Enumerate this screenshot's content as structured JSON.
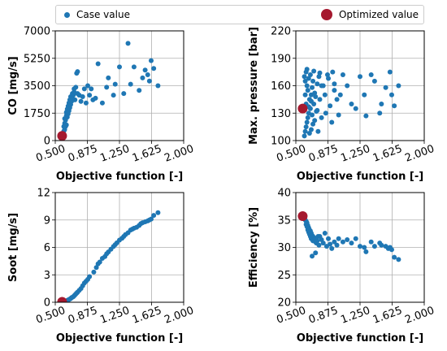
{
  "legend": {
    "case_label": "Case value",
    "optimized_label": "Optimized value",
    "case_color": "#1f77b4",
    "optimized_color": "#a5192f"
  },
  "chart_data": [
    {
      "type": "scatter",
      "id": "co",
      "xlabel": "Objective function [-]",
      "ylabel": "CO [mg/s]",
      "xlim": [
        0.5,
        2.0
      ],
      "ylim": [
        0,
        7000
      ],
      "xticks": [
        "0.500",
        "0.875",
        "1.250",
        "1.625",
        "2.000"
      ],
      "yticks": [
        "0",
        "1750",
        "3500",
        "5250",
        "7000"
      ],
      "grid": true,
      "series": [
        {
          "name": "Case value",
          "x": [
            0.59,
            0.6,
            0.6,
            0.61,
            0.61,
            0.61,
            0.62,
            0.62,
            0.63,
            0.63,
            0.63,
            0.64,
            0.64,
            0.65,
            0.65,
            0.66,
            0.66,
            0.67,
            0.67,
            0.68,
            0.68,
            0.69,
            0.7,
            0.7,
            0.71,
            0.72,
            0.72,
            0.73,
            0.74,
            0.75,
            0.76,
            0.76,
            0.78,
            0.8,
            0.82,
            0.84,
            0.86,
            0.88,
            0.9,
            0.92,
            0.94,
            0.97,
            1.0,
            1.05,
            1.1,
            1.12,
            1.18,
            1.2,
            1.25,
            1.3,
            1.35,
            1.38,
            1.42,
            1.48,
            1.52,
            1.55,
            1.58,
            1.6,
            1.62,
            1.65,
            1.7
          ],
          "y": [
            400,
            600,
            900,
            700,
            1100,
            1400,
            900,
            1300,
            1600,
            1000,
            1800,
            1500,
            2000,
            1700,
            2200,
            1900,
            2400,
            2100,
            2600,
            2300,
            2800,
            2500,
            2700,
            3000,
            2900,
            3100,
            3300,
            2600,
            3400,
            4300,
            4400,
            3000,
            2900,
            2500,
            2800,
            3300,
            2400,
            3500,
            2900,
            3300,
            2600,
            2700,
            4900,
            2400,
            3400,
            4000,
            2900,
            3600,
            4700,
            3000,
            6200,
            3600,
            4700,
            3200,
            4000,
            4500,
            4200,
            3800,
            5100,
            4600,
            3500
          ]
        },
        {
          "name": "Optimized value",
          "x": [
            0.58
          ],
          "y": [
            300
          ]
        }
      ]
    },
    {
      "type": "scatter",
      "id": "pressure",
      "xlabel": "Objective function [-]",
      "ylabel": "Max. pressure [bar]",
      "xlim": [
        0.5,
        2.0
      ],
      "ylim": [
        100,
        220
      ],
      "xticks": [
        "0.500",
        "0.875",
        "1.250",
        "1.625",
        "2.000"
      ],
      "yticks": [
        "100",
        "130",
        "160",
        "190",
        "220"
      ],
      "grid": true,
      "series": [
        {
          "name": "Case value",
          "x": [
            0.6,
            0.6,
            0.61,
            0.61,
            0.61,
            0.62,
            0.62,
            0.62,
            0.63,
            0.63,
            0.63,
            0.64,
            0.64,
            0.65,
            0.65,
            0.66,
            0.66,
            0.67,
            0.67,
            0.68,
            0.68,
            0.69,
            0.69,
            0.7,
            0.7,
            0.71,
            0.71,
            0.72,
            0.73,
            0.74,
            0.75,
            0.76,
            0.77,
            0.78,
            0.8,
            0.82,
            0.84,
            0.85,
            0.87,
            0.9,
            0.92,
            0.95,
            0.98,
            1.0,
            1.05,
            1.1,
            1.15,
            1.2,
            1.25,
            1.3,
            1.32,
            1.38,
            1.42,
            1.48,
            1.5,
            1.55,
            1.6,
            1.62,
            1.65,
            1.7,
            0.65,
            0.68,
            0.72,
            0.75,
            0.78,
            0.8,
            0.88,
            0.93,
            0.95,
            1.02
          ],
          "y": [
            105,
            170,
            110,
            150,
            165,
            115,
            140,
            175,
            120,
            160,
            178,
            125,
            155,
            130,
            168,
            108,
            145,
            135,
            172,
            112,
            150,
            128,
            158,
            118,
            165,
            140,
            176,
            122,
            148,
            132,
            162,
            110,
            170,
            174,
            125,
            160,
            150,
            130,
            172,
            138,
            120,
            162,
            145,
            128,
            172,
            160,
            140,
            135,
            170,
            150,
            127,
            172,
            165,
            130,
            140,
            158,
            175,
            150,
            138,
            160,
            137,
            143,
            152,
            133,
            145,
            160,
            168,
            175,
            155,
            150
          ]
        },
        {
          "name": "Optimized value",
          "x": [
            0.58
          ],
          "y": [
            135
          ]
        }
      ]
    },
    {
      "type": "scatter",
      "id": "soot",
      "xlabel": "Objective function [-]",
      "ylabel": "Soot [mg/s]",
      "xlim": [
        0.5,
        2.0
      ],
      "ylim": [
        0,
        12
      ],
      "xticks": [
        "0.500",
        "0.875",
        "1.250",
        "1.625",
        "2.000"
      ],
      "yticks": [
        "0",
        "3",
        "6",
        "9",
        "12"
      ],
      "grid": true,
      "series": [
        {
          "name": "Case value",
          "x": [
            0.6,
            0.61,
            0.62,
            0.63,
            0.64,
            0.65,
            0.66,
            0.67,
            0.68,
            0.69,
            0.7,
            0.71,
            0.72,
            0.73,
            0.74,
            0.75,
            0.76,
            0.78,
            0.8,
            0.82,
            0.84,
            0.86,
            0.88,
            0.9,
            0.95,
            0.98,
            1.0,
            1.02,
            1.05,
            1.08,
            1.1,
            1.12,
            1.15,
            1.18,
            1.2,
            1.22,
            1.25,
            1.28,
            1.3,
            1.32,
            1.35,
            1.38,
            1.4,
            1.42,
            1.45,
            1.48,
            1.5,
            1.52,
            1.55,
            1.58,
            1.6,
            1.62,
            1.65,
            1.7
          ],
          "y": [
            0.05,
            0.1,
            0.1,
            0.15,
            0.2,
            0.25,
            0.3,
            0.35,
            0.4,
            0.5,
            0.55,
            0.6,
            0.7,
            0.8,
            0.9,
            1.0,
            1.1,
            1.3,
            1.5,
            1.8,
            2.1,
            2.3,
            2.5,
            2.8,
            3.3,
            3.8,
            4.2,
            4.4,
            4.8,
            5.0,
            5.3,
            5.5,
            5.8,
            6.1,
            6.3,
            6.5,
            6.8,
            7.0,
            7.2,
            7.4,
            7.6,
            7.9,
            8.0,
            8.1,
            8.2,
            8.4,
            8.6,
            8.7,
            8.8,
            8.9,
            9.0,
            9.1,
            9.5,
            9.8
          ]
        },
        {
          "name": "Optimized value",
          "x": [
            0.58
          ],
          "y": [
            0.05
          ]
        }
      ]
    },
    {
      "type": "scatter",
      "id": "efficiency",
      "xlabel": "Objective function [-]",
      "ylabel": "Efficiency [%]",
      "xlim": [
        0.5,
        2.0
      ],
      "ylim": [
        20,
        40
      ],
      "xticks": [
        "0.500",
        "0.875",
        "1.250",
        "1.625",
        "2.000"
      ],
      "yticks": [
        "20",
        "25",
        "30",
        "35",
        "40"
      ],
      "grid": true,
      "series": [
        {
          "name": "Case value",
          "x": [
            0.6,
            0.61,
            0.62,
            0.62,
            0.63,
            0.63,
            0.64,
            0.64,
            0.65,
            0.65,
            0.66,
            0.66,
            0.67,
            0.67,
            0.68,
            0.68,
            0.69,
            0.7,
            0.7,
            0.71,
            0.72,
            0.73,
            0.74,
            0.75,
            0.76,
            0.77,
            0.78,
            0.8,
            0.82,
            0.84,
            0.86,
            0.88,
            0.9,
            0.92,
            0.95,
            0.98,
            1.0,
            1.05,
            1.1,
            1.15,
            1.2,
            1.25,
            1.3,
            1.32,
            1.38,
            1.42,
            1.48,
            1.5,
            1.55,
            1.58,
            1.6,
            1.62,
            1.65,
            1.7,
            0.69,
            0.73
          ],
          "y": [
            35.2,
            35.0,
            34.8,
            34.2,
            34.5,
            33.8,
            34.0,
            33.2,
            33.6,
            32.8,
            33.2,
            32.4,
            33.0,
            32.0,
            32.6,
            31.6,
            32.2,
            32.0,
            31.2,
            31.8,
            31.4,
            31.0,
            30.8,
            31.2,
            32.0,
            30.4,
            32.0,
            31.4,
            30.8,
            32.6,
            30.2,
            31.6,
            30.6,
            29.8,
            31.0,
            30.4,
            31.6,
            31.0,
            31.4,
            30.8,
            31.6,
            30.2,
            30.0,
            29.2,
            31.0,
            30.2,
            30.8,
            30.4,
            30.2,
            29.8,
            30.0,
            29.6,
            28.2,
            27.8,
            28.4,
            29.0
          ]
        },
        {
          "name": "Optimized value",
          "x": [
            0.58
          ],
          "y": [
            35.7
          ]
        }
      ]
    }
  ]
}
